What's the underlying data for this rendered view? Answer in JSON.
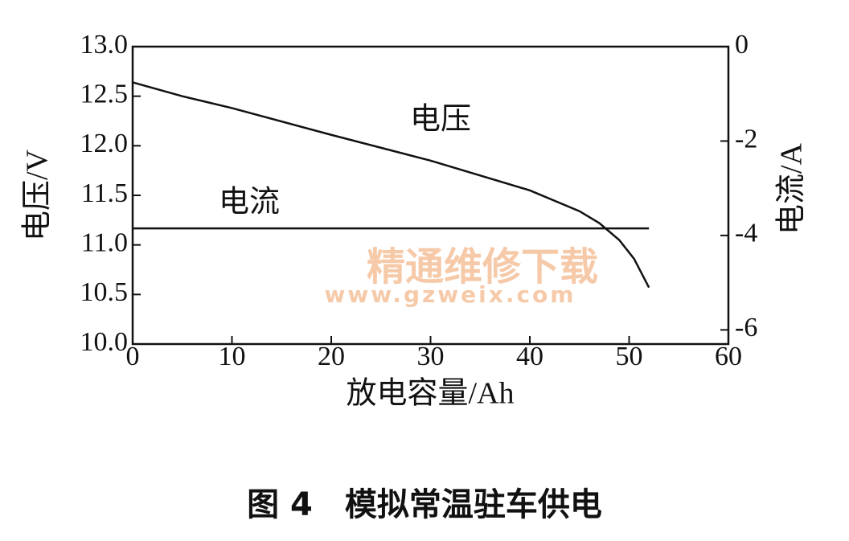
{
  "chart_data": {
    "type": "line",
    "caption": "图 4　模拟常温驻车供电",
    "xlabel": "放电容量/Ah",
    "ylabel": "电压/V",
    "y2label": "电流/A",
    "annotations": [
      "电压",
      "电流"
    ],
    "watermark": [
      "精通维修下载",
      "www.gzweix.com"
    ],
    "xlim": [
      0,
      60
    ],
    "xticks": [
      0,
      10,
      20,
      30,
      40,
      50,
      60
    ],
    "ylim": [
      10,
      13
    ],
    "yticks": [
      {
        "value": 10,
        "label": "10.0"
      },
      10.5,
      {
        "value": 11,
        "label": "11.0"
      },
      11.5,
      {
        "value": 12,
        "label": "12.0"
      },
      12.5,
      {
        "value": 13,
        "label": "13.0"
      }
    ],
    "y2lim": [
      -6.3,
      0
    ],
    "y2ticks": [
      0,
      -2,
      -4,
      -6
    ],
    "series": [
      {
        "name": "电压",
        "color": "#111111",
        "x": [
          0,
          5,
          10,
          20,
          30,
          40,
          45,
          47,
          49,
          50.5,
          52
        ],
        "values": [
          12.64,
          12.5,
          12.38,
          12.11,
          11.85,
          11.55,
          11.34,
          11.22,
          11.05,
          10.86,
          10.57
        ]
      },
      {
        "name": "电流",
        "color": "#111111",
        "axis": "y2",
        "x": [
          0,
          52
        ],
        "values": [
          -3.85,
          -3.85
        ]
      }
    ]
  }
}
